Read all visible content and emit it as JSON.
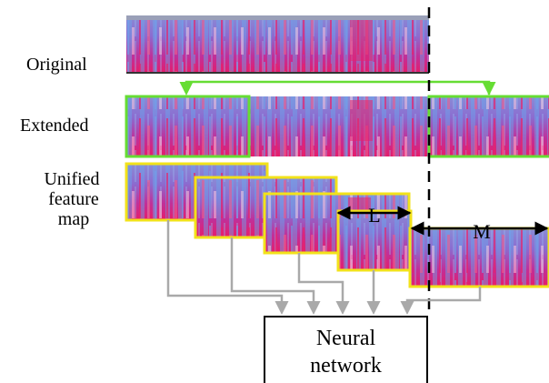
{
  "labels": {
    "original": "Original",
    "extended": "Extended",
    "unified_line1": "Unified",
    "unified_line2": "feature map",
    "length_L": "L",
    "shift_M": "M"
  },
  "network": {
    "line1": "Neural",
    "line2": "network"
  },
  "colors": {
    "spectrogram_base": "#7c6fd6",
    "spectrogram_hot": "#e8226c",
    "spectrogram_cool": "#6f9be8",
    "extended_border": "#66dd33",
    "unified_border": "#f2e21a",
    "arrow_gray": "#a9a9a9",
    "dashed_line": "#000000"
  }
}
